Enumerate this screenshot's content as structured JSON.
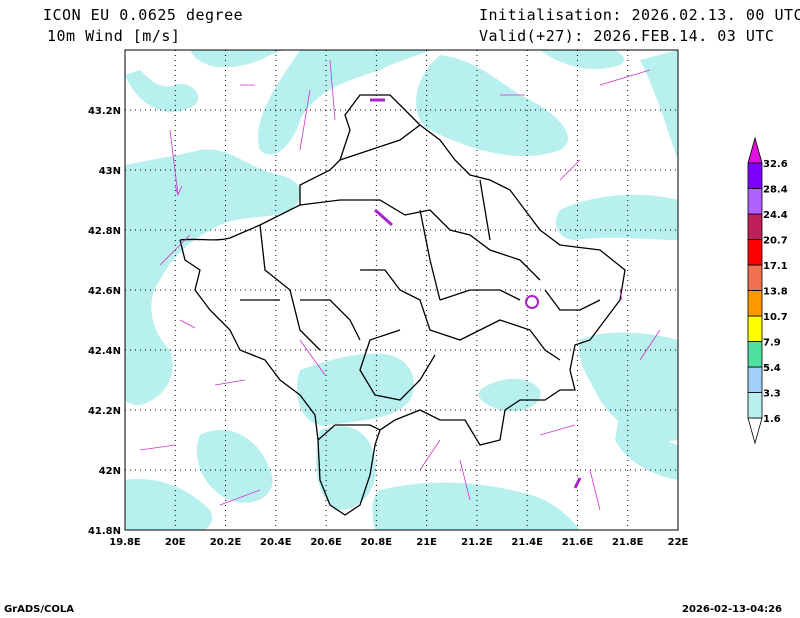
{
  "header": {
    "model": "ICON EU 0.0625 degree",
    "variable": "10m Wind [m/s]",
    "initialisation": "Initialisation: 2026.02.13. 00 UTC",
    "valid": "Valid(+27): 2026.FEB.14. 03 UTC"
  },
  "map": {
    "lon_range": [
      19.8,
      22.0
    ],
    "lat_range": [
      41.8,
      43.4
    ],
    "lon_ticks": [
      "19.8E",
      "20E",
      "20.2E",
      "20.4E",
      "20.6E",
      "20.8E",
      "21E",
      "21.2E",
      "21.4E",
      "21.6E",
      "21.8E",
      "22E"
    ],
    "lat_ticks": [
      "41.8N",
      "42N",
      "42.2N",
      "42.4N",
      "42.6N",
      "42.8N",
      "43N",
      "43.2N"
    ],
    "shade_color": "#b8f0f0",
    "border_color": "#000000",
    "vector_color": "#cc33cc"
  },
  "colorbar": {
    "levels": [
      "1.6",
      "3.3",
      "5.4",
      "7.9",
      "10.7",
      "13.8",
      "17.1",
      "20.7",
      "24.4",
      "28.4",
      "32.6"
    ],
    "colors": [
      "#ffffff",
      "#b8f0f0",
      "#a0d0f8",
      "#50e0a0",
      "#ffff00",
      "#ff9900",
      "#f07050",
      "#ff0000",
      "#c0205a",
      "#b060ff",
      "#8000ff",
      "#e010e0"
    ]
  },
  "footer": {
    "left": "GrADS/COLA",
    "right": "2026-02-13-04:26"
  }
}
